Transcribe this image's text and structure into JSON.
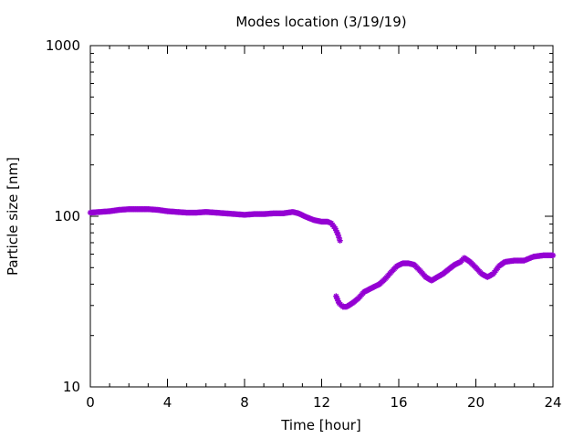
{
  "chart_data": {
    "type": "scatter",
    "title": "Modes location (3/19/19)",
    "xlabel": "Time [hour]",
    "ylabel": "Particle size [nm]",
    "xlim": [
      0,
      24
    ],
    "ylim": [
      10,
      1000
    ],
    "y_scale": "log",
    "grid": false,
    "x_ticks": [
      0,
      4,
      8,
      12,
      16,
      20,
      24
    ],
    "x_tick_labels": [
      "0",
      "4",
      "8",
      "12",
      "16",
      "20",
      "24"
    ],
    "y_ticks": [
      10,
      100,
      1000
    ],
    "y_tick_labels": [
      "10",
      "100",
      "1000"
    ],
    "marker": "star",
    "series": [
      {
        "color": "#9400d3",
        "points": [
          [
            0.0,
            105
          ],
          [
            0.5,
            106
          ],
          [
            1.0,
            107
          ],
          [
            1.5,
            109
          ],
          [
            2.0,
            110
          ],
          [
            2.5,
            110
          ],
          [
            3.0,
            110
          ],
          [
            3.5,
            109
          ],
          [
            4.0,
            107
          ],
          [
            4.5,
            106
          ],
          [
            5.0,
            105
          ],
          [
            5.5,
            105
          ],
          [
            6.0,
            106
          ],
          [
            6.5,
            105
          ],
          [
            7.0,
            104
          ],
          [
            7.5,
            103
          ],
          [
            8.0,
            102
          ],
          [
            8.5,
            103
          ],
          [
            9.0,
            103
          ],
          [
            9.5,
            104
          ],
          [
            10.0,
            104
          ],
          [
            10.5,
            106
          ],
          [
            10.8,
            104
          ],
          [
            11.2,
            99
          ],
          [
            11.6,
            95
          ],
          [
            12.0,
            93
          ],
          [
            12.3,
            93
          ],
          [
            12.5,
            91
          ],
          [
            12.7,
            85
          ],
          [
            12.85,
            78
          ],
          [
            12.95,
            72
          ],
          [
            12.75,
            34
          ],
          [
            12.9,
            31
          ],
          [
            13.1,
            29.5
          ],
          [
            13.3,
            29.5
          ],
          [
            13.6,
            31
          ],
          [
            13.9,
            33
          ],
          [
            14.2,
            36
          ],
          [
            14.6,
            38
          ],
          [
            15.0,
            40
          ],
          [
            15.3,
            43
          ],
          [
            15.6,
            47
          ],
          [
            15.9,
            51
          ],
          [
            16.2,
            53
          ],
          [
            16.5,
            53
          ],
          [
            16.8,
            52
          ],
          [
            17.1,
            48
          ],
          [
            17.4,
            44
          ],
          [
            17.7,
            42
          ],
          [
            18.0,
            44
          ],
          [
            18.3,
            46
          ],
          [
            18.6,
            49
          ],
          [
            18.9,
            52
          ],
          [
            19.2,
            54
          ],
          [
            19.4,
            57
          ],
          [
            19.7,
            54
          ],
          [
            20.0,
            50
          ],
          [
            20.3,
            46
          ],
          [
            20.6,
            44
          ],
          [
            20.9,
            46
          ],
          [
            21.2,
            51
          ],
          [
            21.5,
            54
          ],
          [
            22.0,
            55
          ],
          [
            22.5,
            55
          ],
          [
            23.0,
            58
          ],
          [
            23.5,
            59
          ],
          [
            24.0,
            59
          ]
        ]
      }
    ]
  }
}
